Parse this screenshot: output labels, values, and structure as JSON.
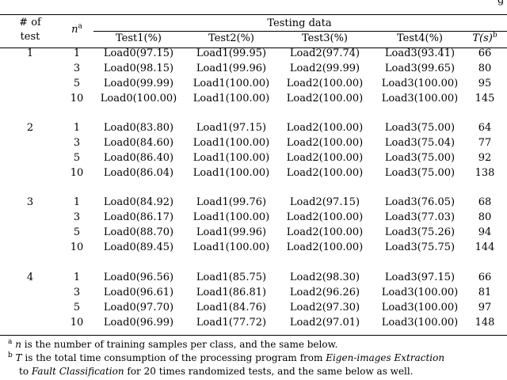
{
  "header_cutoff": "g",
  "headers": {
    "num_test_line1": "# of",
    "num_test_line2": "test",
    "n_symbol": "n",
    "n_note": "a",
    "group": "Testing data",
    "test1": "Test1(%)",
    "test2": "Test2(%)",
    "test3": "Test3(%)",
    "test4": "Test4(%)",
    "time": "T(s)",
    "time_note": "b"
  },
  "groups": [
    {
      "test": "1",
      "rows": [
        [
          "1",
          "Load0(97.15)",
          "Load1(99.95)",
          "Load2(97.74)",
          "Load3(93.41)",
          "66"
        ],
        [
          "3",
          "Load0(98.15)",
          "Load1(99.96)",
          "Load2(99.99)",
          "Load3(99.65)",
          "80"
        ],
        [
          "5",
          "Load0(99.99)",
          "Load1(100.00)",
          "Load2(100.00)",
          "Load3(100.00)",
          "95"
        ],
        [
          "10",
          "Load0(100.00)",
          "Load1(100.00)",
          "Load2(100.00)",
          "Load3(100.00)",
          "145"
        ]
      ]
    },
    {
      "test": "2",
      "rows": [
        [
          "1",
          "Load0(83.80)",
          "Load1(97.15)",
          "Load2(100.00)",
          "Load3(75.00)",
          "64"
        ],
        [
          "3",
          "Load0(84.60)",
          "Load1(100.00)",
          "Load2(100.00)",
          "Load3(75.04)",
          "77"
        ],
        [
          "5",
          "Load0(86.40)",
          "Load1(100.00)",
          "Load2(100.00)",
          "Load3(75.00)",
          "92"
        ],
        [
          "10",
          "Load0(86.04)",
          "Load1(100.00)",
          "Load2(100.00)",
          "Load3(75.00)",
          "138"
        ]
      ]
    },
    {
      "test": "3",
      "rows": [
        [
          "1",
          "Load0(84.92)",
          "Load1(99.76)",
          "Load2(97.15)",
          "Load3(76.05)",
          "68"
        ],
        [
          "3",
          "Load0(86.17)",
          "Load1(100.00)",
          "Load2(100.00)",
          "Load3(77.03)",
          "80"
        ],
        [
          "5",
          "Load0(88.70)",
          "Load1(99.96)",
          "Load2(100.00)",
          "Load3(75.26)",
          "94"
        ],
        [
          "10",
          "Load0(89.45)",
          "Load1(100.00)",
          "Load2(100.00)",
          "Load3(75.75)",
          "144"
        ]
      ]
    },
    {
      "test": "4",
      "rows": [
        [
          "1",
          "Load0(96.56)",
          "Load1(85.75)",
          "Load2(98.30)",
          "Load3(97.15)",
          "66"
        ],
        [
          "3",
          "Load0(96.61)",
          "Load1(86.81)",
          "Load2(96.26)",
          "Load3(100.00)",
          "81"
        ],
        [
          "5",
          "Load0(97.70)",
          "Load1(84.76)",
          "Load2(97.30)",
          "Load3(100.00)",
          "97"
        ],
        [
          "10",
          "Load0(96.99)",
          "Load1(77.72)",
          "Load2(97.01)",
          "Load3(100.00)",
          "148"
        ]
      ]
    }
  ],
  "footnotes": {
    "a_mark": "a",
    "a_var": "n",
    "a_text": " is the number of training samples per class, and the same below.",
    "b_mark": "b",
    "b_var": "T",
    "b_text1": " is the total time consumption of the processing program from ",
    "b_em1": "Eigen-images Extraction",
    "b_to": "to ",
    "b_em2": "Fault Classification",
    "b_text2": " for 20 times randomized tests, and the same below as well."
  }
}
